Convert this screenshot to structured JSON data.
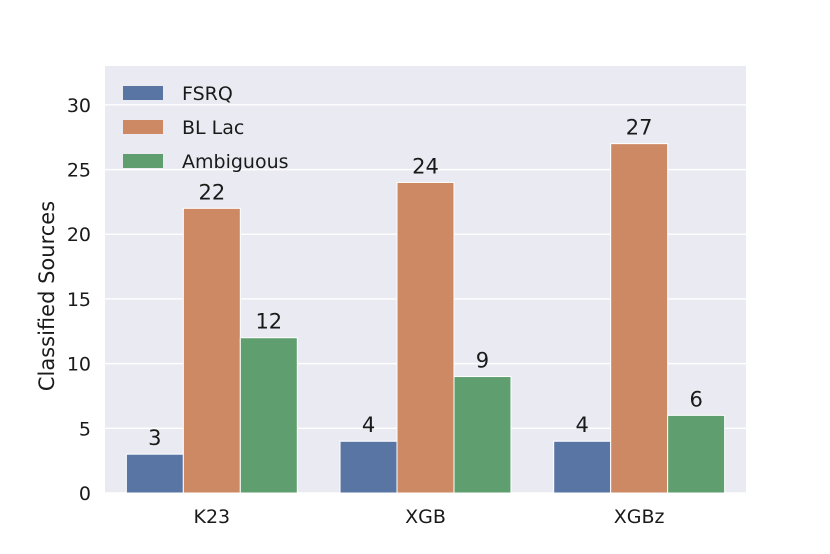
{
  "chart_data": {
    "type": "bar",
    "categories": [
      "K23",
      "XGB",
      "XGBz"
    ],
    "series": [
      {
        "name": "FSRQ",
        "values": [
          3,
          4,
          4
        ],
        "color": "#5875a4"
      },
      {
        "name": "BL Lac",
        "values": [
          22,
          24,
          27
        ],
        "color": "#cc8963"
      },
      {
        "name": "Ambiguous",
        "values": [
          12,
          9,
          6
        ],
        "color": "#5f9e6e"
      }
    ],
    "ylabel": "Classified Sources",
    "ylim": [
      0,
      33
    ],
    "yticks": [
      0,
      5,
      10,
      15,
      20,
      25,
      30
    ],
    "grid": true,
    "legend_position": "top-left",
    "background_color": "#eaeaf2"
  }
}
